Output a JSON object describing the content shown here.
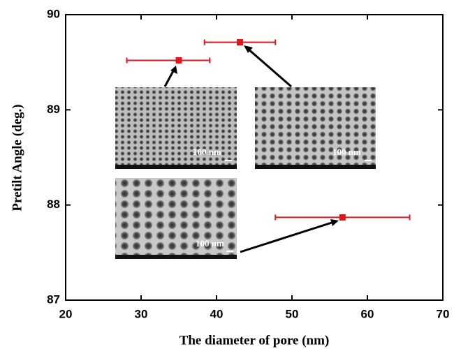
{
  "chart_data": {
    "type": "errorbar",
    "xlabel": "The diameter of pore (nm)",
    "ylabel": "Pretilt Angle (deg.)",
    "x": [
      35.0,
      43.1,
      56.7
    ],
    "xerr_minus": [
      6.9,
      4.7,
      8.9
    ],
    "xerr_plus": [
      4.1,
      4.7,
      8.9
    ],
    "values": [
      89.52,
      89.71,
      87.87
    ],
    "color": "#e8141b",
    "xlim": [
      20,
      70
    ],
    "ylim": [
      87,
      90
    ],
    "xticks": [
      20,
      30,
      40,
      50,
      60,
      70
    ],
    "yticks": [
      87,
      88,
      89,
      90
    ],
    "insets": [
      {
        "label": "100 nm"
      },
      {
        "label": "100 nm"
      },
      {
        "label": "100 nm"
      }
    ]
  }
}
